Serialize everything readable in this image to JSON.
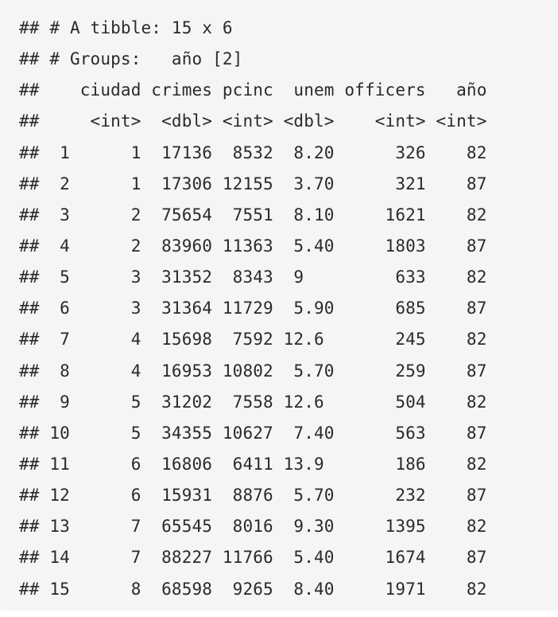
{
  "output": {
    "lines": [
      "## # A tibble: 15 x 6",
      "## # Groups:   año [2]",
      "##    ciudad crimes pcinc  unem officers   año",
      "##     <int>  <dbl> <int> <dbl>    <int> <int>",
      "##  1      1  17136  8532  8.20      326    82",
      "##  2      1  17306 12155  3.70      321    87",
      "##  3      2  75654  7551  8.10     1621    82",
      "##  4      2  83960 11363  5.40     1803    87",
      "##  5      3  31352  8343  9         633    82",
      "##  6      3  31364 11729  5.90      685    87",
      "##  7      4  15698  7592 12.6       245    82",
      "##  8      4  16953 10802  5.70      259    87",
      "##  9      5  31202  7558 12.6       504    82",
      "## 10      5  34355 10627  7.40      563    87",
      "## 11      6  16806  6411 13.9       186    82",
      "## 12      6  15931  8876  5.70      232    87",
      "## 13      7  65545  8016  9.30     1395    82",
      "## 14      7  88227 11766  5.40     1674    87",
      "## 15      8  68598  9265  8.40     1971    82"
    ]
  }
}
